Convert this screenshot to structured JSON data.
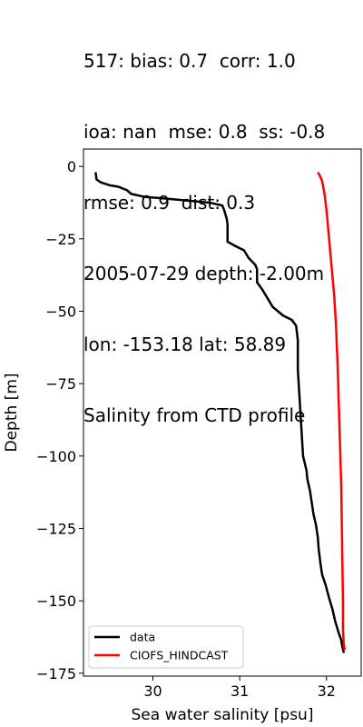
{
  "title_lines": [
    "517: bias: 0.7  corr: 1.0",
    "ioa: nan  mse: 0.8  ss: -0.8",
    "rmse: 0.9  dist: 0.3",
    "2005-07-29 depth: -2.00m",
    "lon: -153.18 lat: 58.89",
    "Salinity from CTD profile"
  ],
  "chart_data": {
    "type": "line",
    "title": "517: bias: 0.7  corr: 1.0\nioa: nan  mse: 0.8  ss: -0.8\nrmse: 0.9  dist: 0.3\n2005-07-29 depth: -2.00m\nlon: -153.18 lat: 58.89\nSalinity from CTD profile",
    "xlabel": "Sea water salinity [psu]",
    "ylabel": "Depth [m]",
    "xlim": [
      29.2,
      32.4
    ],
    "ylim": [
      -176,
      6
    ],
    "xticks": [
      30,
      31,
      32
    ],
    "xtick_labels": [
      "30",
      "31",
      "32"
    ],
    "yticks": [
      0,
      -25,
      -50,
      -75,
      -100,
      -125,
      -150,
      -175
    ],
    "ytick_labels": [
      "0",
      "−25",
      "−50",
      "−75",
      "−100",
      "−125",
      "−150",
      "−175"
    ],
    "legend_position": "lower-left",
    "series": [
      {
        "name": "data",
        "color": "#000000",
        "points": [
          [
            29.34,
            -2.0
          ],
          [
            29.35,
            -4.5
          ],
          [
            29.4,
            -5.5
          ],
          [
            29.5,
            -6.5
          ],
          [
            29.6,
            -7.0
          ],
          [
            29.7,
            -8.2
          ],
          [
            29.75,
            -9.5
          ],
          [
            29.9,
            -10.5
          ],
          [
            30.1,
            -11.0
          ],
          [
            30.4,
            -11.8
          ],
          [
            30.65,
            -12.5
          ],
          [
            30.8,
            -13.5
          ],
          [
            30.82,
            -15.0
          ],
          [
            30.85,
            -18.0
          ],
          [
            30.86,
            -20.0
          ],
          [
            30.86,
            -24.0
          ],
          [
            30.86,
            -26.0
          ],
          [
            30.95,
            -27.5
          ],
          [
            31.05,
            -29.0
          ],
          [
            31.1,
            -31.5
          ],
          [
            31.18,
            -34.0
          ],
          [
            31.2,
            -35.5
          ],
          [
            31.2,
            -40.0
          ],
          [
            31.26,
            -42.5
          ],
          [
            31.3,
            -44.5
          ],
          [
            31.35,
            -47.0
          ],
          [
            31.38,
            -48.5
          ],
          [
            31.5,
            -51.5
          ],
          [
            31.6,
            -53.0
          ],
          [
            31.65,
            -55.0
          ],
          [
            31.67,
            -60.0
          ],
          [
            31.67,
            -70.0
          ],
          [
            31.69,
            -80.0
          ],
          [
            31.71,
            -90.0
          ],
          [
            31.73,
            -100.0
          ],
          [
            31.77,
            -105.0
          ],
          [
            31.78,
            -108.0
          ],
          [
            31.81,
            -112.0
          ],
          [
            31.83,
            -116.0
          ],
          [
            31.85,
            -120.0
          ],
          [
            31.88,
            -124.0
          ],
          [
            31.9,
            -128.0
          ],
          [
            31.91,
            -132.0
          ],
          [
            31.93,
            -137.0
          ],
          [
            31.95,
            -141.0
          ],
          [
            31.99,
            -144.5
          ],
          [
            32.03,
            -149.0
          ],
          [
            32.07,
            -153.0
          ],
          [
            32.1,
            -157.0
          ],
          [
            32.14,
            -161.0
          ],
          [
            32.17,
            -163.5
          ],
          [
            32.18,
            -165.5
          ],
          [
            32.2,
            -168.0
          ]
        ]
      },
      {
        "name": "CIOFS_HINDCAST",
        "color": "#ff0000",
        "points": [
          [
            31.9,
            -2.0
          ],
          [
            31.92,
            -3.0
          ],
          [
            31.95,
            -5.0
          ],
          [
            31.98,
            -10.0
          ],
          [
            32.0,
            -15.0
          ],
          [
            32.03,
            -25.0
          ],
          [
            32.06,
            -35.0
          ],
          [
            32.09,
            -45.0
          ],
          [
            32.11,
            -55.0
          ],
          [
            32.13,
            -70.0
          ],
          [
            32.15,
            -90.0
          ],
          [
            32.17,
            -110.0
          ],
          [
            32.18,
            -130.0
          ],
          [
            32.19,
            -150.0
          ],
          [
            32.19,
            -160.0
          ],
          [
            32.2,
            -165.0
          ],
          [
            32.21,
            -167.0
          ]
        ]
      }
    ]
  }
}
